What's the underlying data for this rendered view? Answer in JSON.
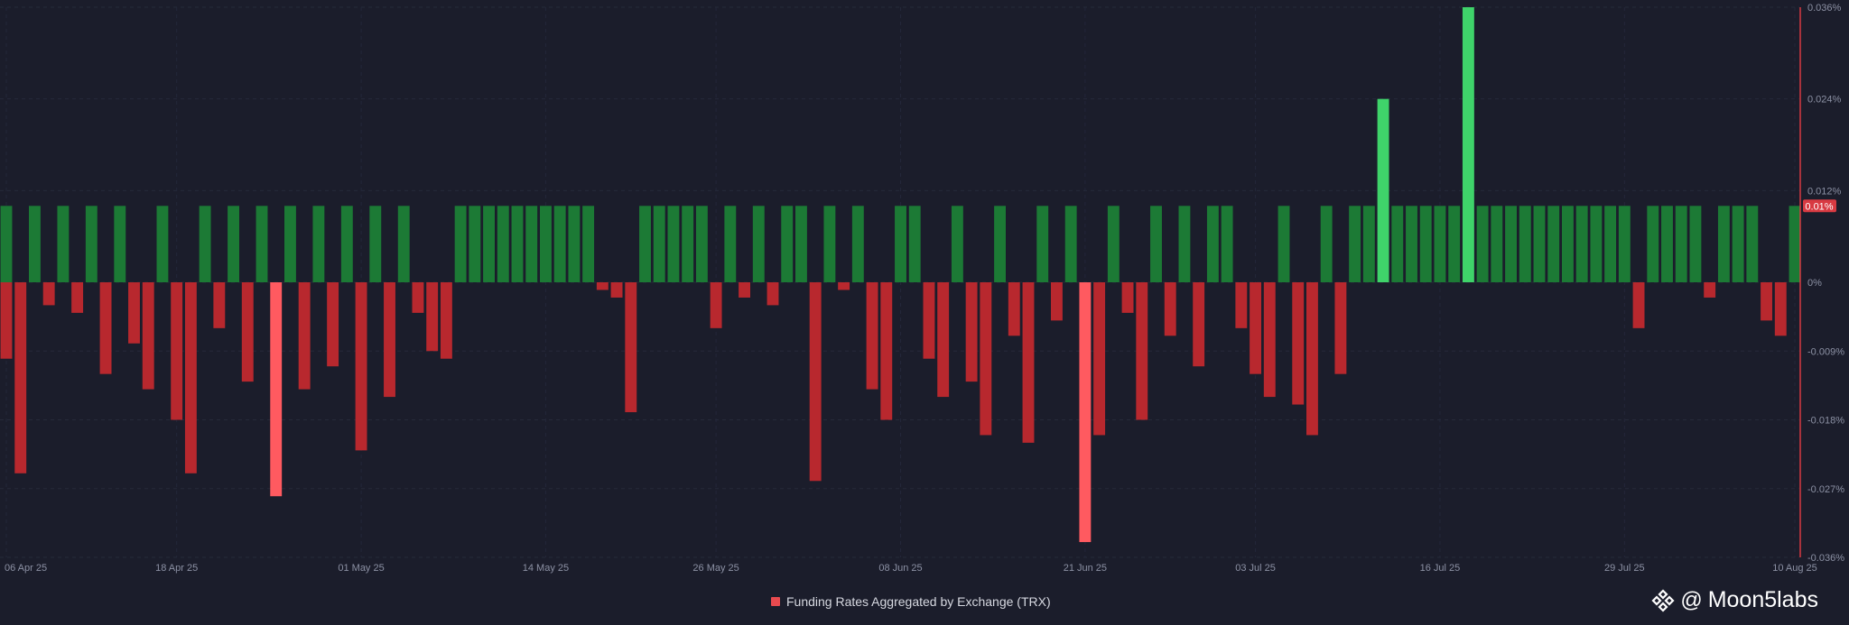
{
  "chart_data": {
    "type": "bar",
    "title": "",
    "legend": {
      "label": "Funding Rates Aggregated by Exchange (TRX)",
      "color": "#e84a4f",
      "position": "bottom-center"
    },
    "x_ticks": [
      "06 Apr 25",
      "18 Apr 25",
      "01 May 25",
      "14 May 25",
      "26 May 25",
      "08 Jun 25",
      "21 Jun 25",
      "03 Jul 25",
      "16 Jul 25",
      "29 Jul 25",
      "10 Aug 25"
    ],
    "y_ticks": [
      "0.036%",
      "0.024%",
      "0.012%",
      "0%",
      "-0.009%",
      "-0.018%",
      "-0.027%",
      "-0.036%"
    ],
    "ylim": [
      -0.036,
      0.036
    ],
    "unit": "%",
    "grid": true,
    "last_value_label": "0.01%",
    "colors": {
      "positive": "#1c7a35",
      "positive_spike": "#3fd36a",
      "negative": "#b8282e",
      "negative_spike": "#ff5a60",
      "accent_line": "#d83a42",
      "background": "#1b1d2b"
    },
    "x_range": [
      "2025-04-06",
      "2025-08-10"
    ],
    "bars": [
      {
        "x": "2025-04-06",
        "y": 0.01
      },
      {
        "x": "2025-04-06",
        "y": -0.01
      },
      {
        "x": "2025-04-07",
        "y": -0.025
      },
      {
        "x": "2025-04-08",
        "y": 0.01
      },
      {
        "x": "2025-04-09",
        "y": -0.003
      },
      {
        "x": "2025-04-10",
        "y": 0.01
      },
      {
        "x": "2025-04-11",
        "y": -0.004
      },
      {
        "x": "2025-04-12",
        "y": 0.01
      },
      {
        "x": "2025-04-13",
        "y": -0.012
      },
      {
        "x": "2025-04-14",
        "y": 0.01
      },
      {
        "x": "2025-04-15",
        "y": -0.008
      },
      {
        "x": "2025-04-16",
        "y": -0.014
      },
      {
        "x": "2025-04-17",
        "y": 0.01
      },
      {
        "x": "2025-04-18",
        "y": -0.018
      },
      {
        "x": "2025-04-19",
        "y": -0.025
      },
      {
        "x": "2025-04-20",
        "y": 0.01
      },
      {
        "x": "2025-04-21",
        "y": -0.006
      },
      {
        "x": "2025-04-22",
        "y": 0.01
      },
      {
        "x": "2025-04-23",
        "y": -0.013
      },
      {
        "x": "2025-04-24",
        "y": 0.01
      },
      {
        "x": "2025-04-25",
        "y": -0.028
      },
      {
        "x": "2025-04-26",
        "y": 0.01
      },
      {
        "x": "2025-04-27",
        "y": -0.014
      },
      {
        "x": "2025-04-28",
        "y": 0.01
      },
      {
        "x": "2025-04-29",
        "y": -0.011
      },
      {
        "x": "2025-04-30",
        "y": 0.01
      },
      {
        "x": "2025-05-01",
        "y": -0.022
      },
      {
        "x": "2025-05-02",
        "y": 0.01
      },
      {
        "x": "2025-05-03",
        "y": -0.015
      },
      {
        "x": "2025-05-04",
        "y": 0.01
      },
      {
        "x": "2025-05-05",
        "y": -0.004
      },
      {
        "x": "2025-05-06",
        "y": -0.009
      },
      {
        "x": "2025-05-07",
        "y": -0.01
      },
      {
        "x": "2025-05-08",
        "y": 0.01
      },
      {
        "x": "2025-05-09",
        "y": 0.01
      },
      {
        "x": "2025-05-10",
        "y": 0.01
      },
      {
        "x": "2025-05-11",
        "y": 0.01
      },
      {
        "x": "2025-05-12",
        "y": 0.01
      },
      {
        "x": "2025-05-13",
        "y": 0.01
      },
      {
        "x": "2025-05-14",
        "y": 0.01
      },
      {
        "x": "2025-05-15",
        "y": 0.01
      },
      {
        "x": "2025-05-16",
        "y": 0.01
      },
      {
        "x": "2025-05-17",
        "y": 0.01
      },
      {
        "x": "2025-05-18",
        "y": -0.001
      },
      {
        "x": "2025-05-19",
        "y": -0.002
      },
      {
        "x": "2025-05-20",
        "y": -0.017
      },
      {
        "x": "2025-05-21",
        "y": 0.01
      },
      {
        "x": "2025-05-22",
        "y": 0.01
      },
      {
        "x": "2025-05-23",
        "y": 0.01
      },
      {
        "x": "2025-05-24",
        "y": 0.01
      },
      {
        "x": "2025-05-25",
        "y": 0.01
      },
      {
        "x": "2025-05-26",
        "y": -0.006
      },
      {
        "x": "2025-05-27",
        "y": 0.01
      },
      {
        "x": "2025-05-28",
        "y": -0.002
      },
      {
        "x": "2025-05-29",
        "y": 0.01
      },
      {
        "x": "2025-05-30",
        "y": -0.003
      },
      {
        "x": "2025-05-31",
        "y": 0.01
      },
      {
        "x": "2025-06-01",
        "y": 0.01
      },
      {
        "x": "2025-06-02",
        "y": -0.026
      },
      {
        "x": "2025-06-03",
        "y": 0.01
      },
      {
        "x": "2025-06-04",
        "y": -0.001
      },
      {
        "x": "2025-06-05",
        "y": 0.01
      },
      {
        "x": "2025-06-06",
        "y": -0.014
      },
      {
        "x": "2025-06-07",
        "y": -0.018
      },
      {
        "x": "2025-06-08",
        "y": 0.01
      },
      {
        "x": "2025-06-09",
        "y": 0.01
      },
      {
        "x": "2025-06-10",
        "y": -0.01
      },
      {
        "x": "2025-06-11",
        "y": -0.015
      },
      {
        "x": "2025-06-12",
        "y": 0.01
      },
      {
        "x": "2025-06-13",
        "y": -0.013
      },
      {
        "x": "2025-06-14",
        "y": -0.02
      },
      {
        "x": "2025-06-15",
        "y": 0.01
      },
      {
        "x": "2025-06-16",
        "y": -0.007
      },
      {
        "x": "2025-06-17",
        "y": -0.021
      },
      {
        "x": "2025-06-18",
        "y": 0.01
      },
      {
        "x": "2025-06-19",
        "y": -0.005
      },
      {
        "x": "2025-06-20",
        "y": 0.01
      },
      {
        "x": "2025-06-21",
        "y": -0.034
      },
      {
        "x": "2025-06-22",
        "y": -0.02
      },
      {
        "x": "2025-06-23",
        "y": 0.01
      },
      {
        "x": "2025-06-24",
        "y": -0.004
      },
      {
        "x": "2025-06-25",
        "y": -0.018
      },
      {
        "x": "2025-06-26",
        "y": 0.01
      },
      {
        "x": "2025-06-27",
        "y": -0.007
      },
      {
        "x": "2025-06-28",
        "y": 0.01
      },
      {
        "x": "2025-06-29",
        "y": -0.011
      },
      {
        "x": "2025-06-30",
        "y": 0.01
      },
      {
        "x": "2025-07-01",
        "y": 0.01
      },
      {
        "x": "2025-07-02",
        "y": -0.006
      },
      {
        "x": "2025-07-03",
        "y": -0.012
      },
      {
        "x": "2025-07-04",
        "y": -0.015
      },
      {
        "x": "2025-07-05",
        "y": 0.01
      },
      {
        "x": "2025-07-06",
        "y": -0.016
      },
      {
        "x": "2025-07-07",
        "y": -0.02
      },
      {
        "x": "2025-07-08",
        "y": 0.01
      },
      {
        "x": "2025-07-09",
        "y": -0.012
      },
      {
        "x": "2025-07-10",
        "y": 0.01
      },
      {
        "x": "2025-07-11",
        "y": 0.01
      },
      {
        "x": "2025-07-12",
        "y": 0.024
      },
      {
        "x": "2025-07-13",
        "y": 0.01
      },
      {
        "x": "2025-07-14",
        "y": 0.01
      },
      {
        "x": "2025-07-15",
        "y": 0.01
      },
      {
        "x": "2025-07-16",
        "y": 0.01
      },
      {
        "x": "2025-07-17",
        "y": 0.01
      },
      {
        "x": "2025-07-18",
        "y": 0.036
      },
      {
        "x": "2025-07-19",
        "y": 0.01
      },
      {
        "x": "2025-07-20",
        "y": 0.01
      },
      {
        "x": "2025-07-21",
        "y": 0.01
      },
      {
        "x": "2025-07-22",
        "y": 0.01
      },
      {
        "x": "2025-07-23",
        "y": 0.01
      },
      {
        "x": "2025-07-24",
        "y": 0.01
      },
      {
        "x": "2025-07-25",
        "y": 0.01
      },
      {
        "x": "2025-07-26",
        "y": 0.01
      },
      {
        "x": "2025-07-27",
        "y": 0.01
      },
      {
        "x": "2025-07-28",
        "y": 0.01
      },
      {
        "x": "2025-07-29",
        "y": 0.01
      },
      {
        "x": "2025-07-30",
        "y": -0.006
      },
      {
        "x": "2025-07-31",
        "y": 0.01
      },
      {
        "x": "2025-08-01",
        "y": 0.01
      },
      {
        "x": "2025-08-02",
        "y": 0.01
      },
      {
        "x": "2025-08-03",
        "y": 0.01
      },
      {
        "x": "2025-08-04",
        "y": -0.002
      },
      {
        "x": "2025-08-05",
        "y": 0.01
      },
      {
        "x": "2025-08-06",
        "y": 0.01
      },
      {
        "x": "2025-08-07",
        "y": 0.01
      },
      {
        "x": "2025-08-08",
        "y": -0.005
      },
      {
        "x": "2025-08-09",
        "y": -0.007
      },
      {
        "x": "2025-08-10",
        "y": 0.01
      }
    ]
  },
  "brand": {
    "at": "@",
    "name": "Moon5labs",
    "icon": "binance-diamond-icon"
  }
}
